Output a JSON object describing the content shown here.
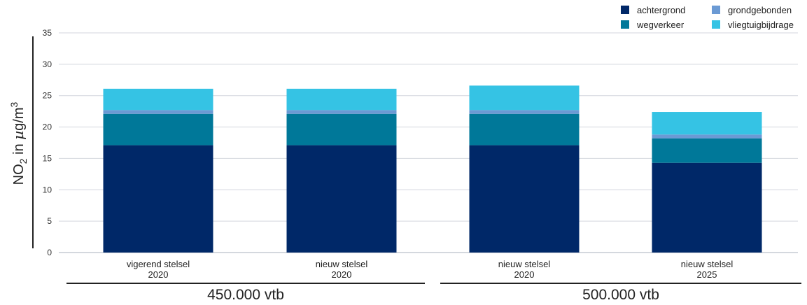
{
  "chart_data": {
    "type": "bar",
    "stacked": true,
    "ylabel_parts": {
      "main": "NO",
      "sub": "2",
      "mid": " in ",
      "mu": "µ",
      "unit": "g/m",
      "sup": "3"
    },
    "ylim": [
      0,
      35
    ],
    "yticks": [
      0,
      5,
      10,
      15,
      20,
      25,
      30,
      35
    ],
    "grid": true,
    "legend_position": "top-right",
    "categories": [
      {
        "line1": "vigerend stelsel",
        "line2": "2020"
      },
      {
        "line1": "nieuw stelsel",
        "line2": "2020"
      },
      {
        "line1": "nieuw stelsel",
        "line2": "2020"
      },
      {
        "line1": "nieuw stelsel",
        "line2": "2025"
      }
    ],
    "groups": [
      {
        "label": "450.000 vtb",
        "categories": [
          0,
          1
        ]
      },
      {
        "label": "500.000 vtb",
        "categories": [
          2,
          3
        ]
      }
    ],
    "series": [
      {
        "name": "achtergrond",
        "color": "#002868",
        "values": [
          17.1,
          17.1,
          17.1,
          14.3
        ]
      },
      {
        "name": "wegverkeer",
        "color": "#007899",
        "values": [
          5.0,
          5.0,
          5.0,
          3.9
        ]
      },
      {
        "name": "grondgebonden",
        "color": "#6b9ad4",
        "values": [
          0.6,
          0.6,
          0.6,
          0.6
        ]
      },
      {
        "name": "vliegtuigbijdrage",
        "color": "#35c3e4",
        "values": [
          3.4,
          3.4,
          3.9,
          3.6
        ]
      }
    ]
  }
}
